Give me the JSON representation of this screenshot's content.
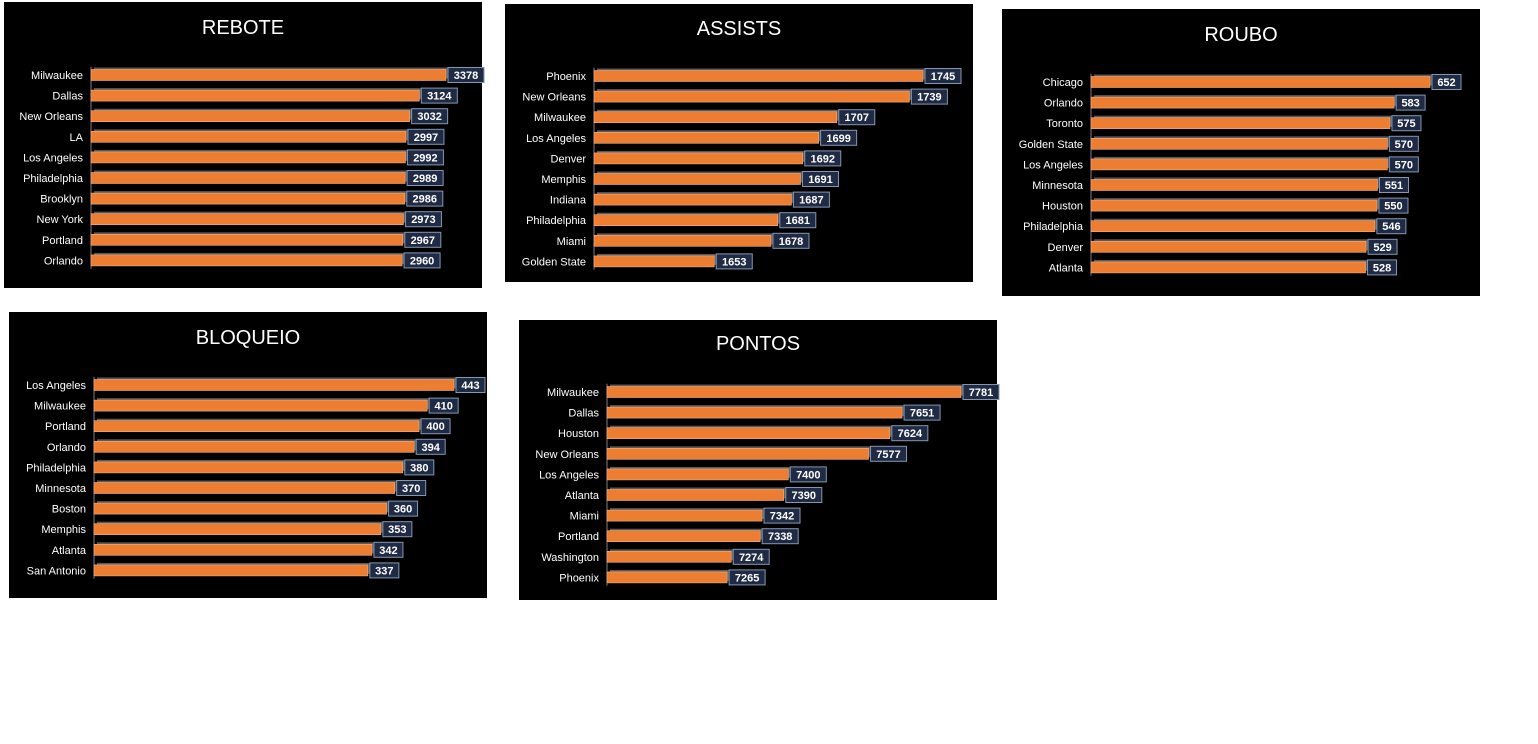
{
  "colors": {
    "background": "#000000",
    "bar_fill": "#ED7D31",
    "bar_edge": "#F4B183",
    "bar_shadow": "#595959",
    "label_box_fill": "#1F2A44",
    "label_box_border": "#8497B0",
    "text": "#ffffff",
    "axis_line": "#7F7F7F"
  },
  "chart_data": [
    {
      "id": "rebote",
      "type": "bar",
      "orientation": "horizontal",
      "title": "REBOTE",
      "categories": [
        "Milwaukee",
        "Dallas",
        "New Orleans",
        "LA",
        "Los Angeles",
        "Philadelphia",
        "Brooklyn",
        "New York",
        "Portland",
        "Orlando"
      ],
      "values": [
        3378,
        3124,
        3032,
        2997,
        2992,
        2989,
        2986,
        2973,
        2967,
        2960
      ],
      "xlim": [
        0,
        3378
      ],
      "data_labels": true,
      "legend": "none",
      "grid": false
    },
    {
      "id": "assists",
      "type": "bar",
      "orientation": "horizontal",
      "title": "ASSISTS",
      "categories": [
        "Phoenix",
        "New Orleans",
        "Milwaukee",
        "Los Angeles",
        "Denver",
        "Memphis",
        "Indiana",
        "Philadelphia",
        "Miami",
        "Golden State"
      ],
      "values": [
        1745,
        1739,
        1707,
        1699,
        1692,
        1691,
        1687,
        1681,
        1678,
        1653
      ],
      "xlim": [
        1600,
        1745
      ],
      "data_labels": true,
      "legend": "none",
      "grid": false
    },
    {
      "id": "roubo",
      "type": "bar",
      "orientation": "horizontal",
      "title": "ROUBO",
      "categories": [
        "Chicago",
        "Orlando",
        "Toronto",
        "Golden State",
        "Los Angeles",
        "Minnesota",
        "Houston",
        "Philadelphia",
        "Denver",
        "Atlanta"
      ],
      "values": [
        652,
        583,
        575,
        570,
        570,
        551,
        550,
        546,
        529,
        528
      ],
      "xlim": [
        0,
        652
      ],
      "data_labels": true,
      "legend": "none",
      "grid": false
    },
    {
      "id": "bloqueio",
      "type": "bar",
      "orientation": "horizontal",
      "title": "BLOQUEIO",
      "categories": [
        "Los Angeles",
        "Milwaukee",
        "Portland",
        "Orlando",
        "Philadelphia",
        "Minnesota",
        "Boston",
        "Memphis",
        "Atlanta",
        "San Antonio"
      ],
      "values": [
        443,
        410,
        400,
        394,
        380,
        370,
        360,
        353,
        342,
        337
      ],
      "xlim": [
        0,
        443
      ],
      "data_labels": true,
      "legend": "none",
      "grid": false
    },
    {
      "id": "pontos",
      "type": "bar",
      "orientation": "horizontal",
      "title": "PONTOS",
      "categories": [
        "Milwaukee",
        "Dallas",
        "Houston",
        "New Orleans",
        "Los Angeles",
        "Atlanta",
        "Miami",
        "Portland",
        "Washington",
        "Phoenix"
      ],
      "values": [
        7781,
        7651,
        7624,
        7577,
        7400,
        7390,
        7342,
        7338,
        7274,
        7265
      ],
      "xlim": [
        7000,
        7781
      ],
      "data_labels": true,
      "legend": "none",
      "grid": false
    }
  ]
}
